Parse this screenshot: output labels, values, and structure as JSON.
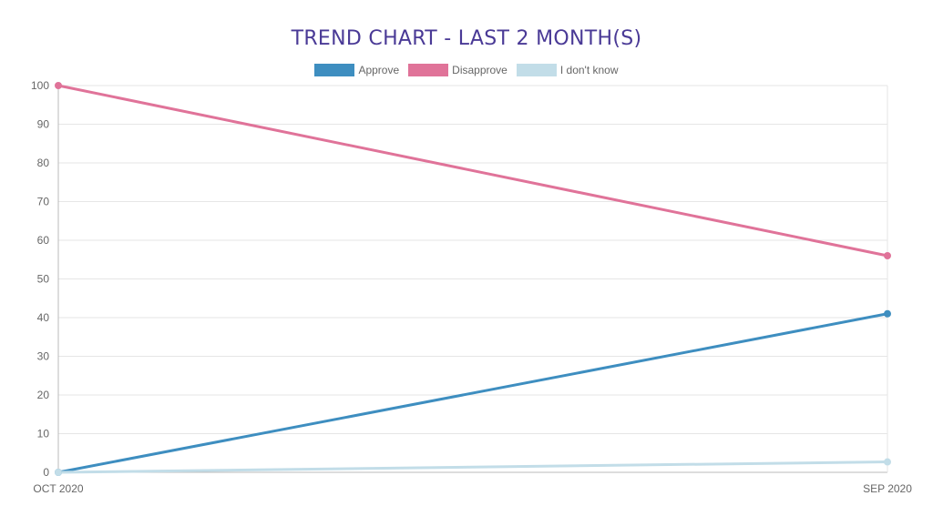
{
  "chart_data": {
    "type": "line",
    "title": "TREND CHART - LAST 2 MONTH(S)",
    "categories": [
      "OCT 2020",
      "SEP 2020"
    ],
    "series": [
      {
        "name": "Approve",
        "values": [
          0,
          41
        ],
        "color": "#3e8ec0"
      },
      {
        "name": "Disapprove",
        "values": [
          100,
          56
        ],
        "color": "#e07399"
      },
      {
        "name": "I don't know",
        "values": [
          0,
          2.7
        ],
        "color": "#c2dde8"
      }
    ],
    "ylim": [
      0,
      100
    ],
    "yticks": [
      "0",
      "10",
      "20",
      "30",
      "40",
      "50",
      "60",
      "70",
      "80",
      "90",
      "100"
    ],
    "grid": true,
    "legend": "top-center"
  }
}
